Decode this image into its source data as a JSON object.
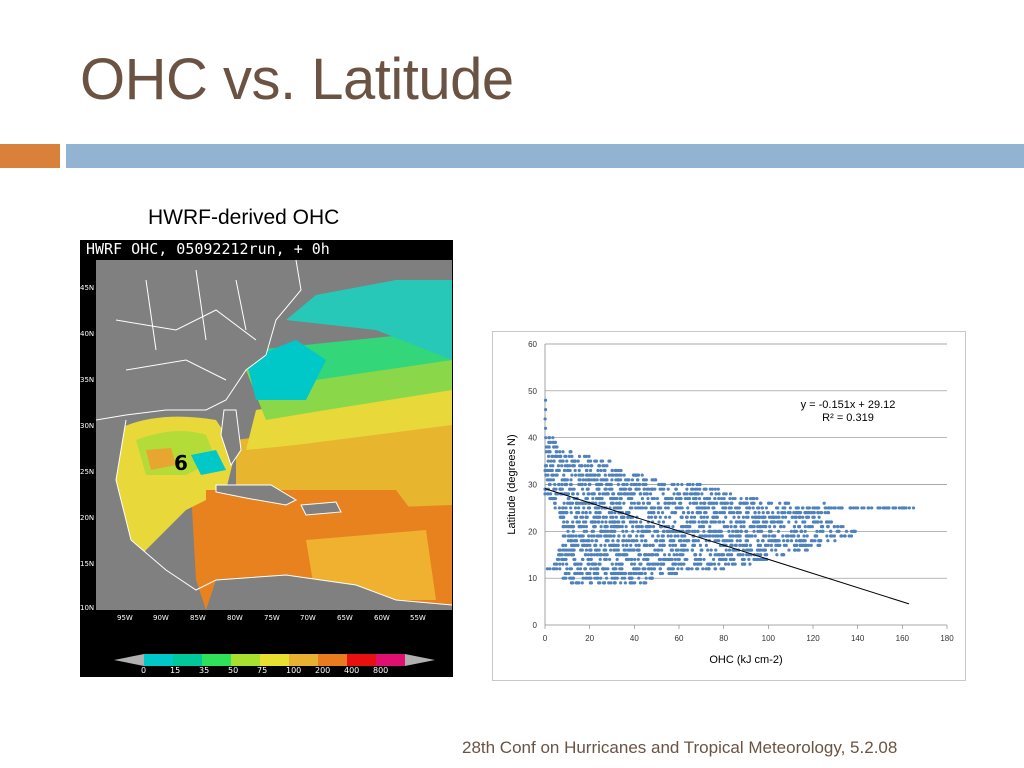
{
  "slide": {
    "title": "OHC vs. Latitude",
    "map_caption": "HWRF-derived OHC",
    "footer": "28th Conf on Hurricanes and Tropical Meteorology, 5.2.08"
  },
  "map": {
    "header": "HWRF OHC, 05092212run, + 0h",
    "storm_symbol": "੬",
    "lat_labels": [
      "45N",
      "40N",
      "35N",
      "30N",
      "25N",
      "20N",
      "15N",
      "10N"
    ],
    "lon_labels": [
      "95W",
      "90W",
      "85W",
      "80W",
      "75W",
      "70W",
      "65W",
      "60W",
      "55W"
    ],
    "colorbar_labels": [
      "0",
      "15",
      "35",
      "50",
      "75",
      "100",
      "200",
      "400",
      "800"
    ],
    "colorbar_colors": [
      "#00c8c8",
      "#00c89a",
      "#2ee05a",
      "#a8e030",
      "#e8e030",
      "#e8b030",
      "#e87a20",
      "#e81010",
      "#e01070"
    ]
  },
  "chart_data": {
    "type": "scatter",
    "xlabel": "OHC (kJ cm-2)",
    "ylabel": "Latitude (degrees N)",
    "xlim": [
      0,
      180
    ],
    "ylim": [
      0,
      60
    ],
    "xticks": [
      0,
      20,
      40,
      60,
      80,
      100,
      120,
      140,
      160,
      180
    ],
    "yticks": [
      0,
      10,
      20,
      30,
      40,
      50,
      60
    ],
    "grid": true,
    "point_color": "#4f81bd",
    "trendline": {
      "slope": -0.151,
      "intercept": 29.12,
      "x_range": [
        0,
        163
      ]
    },
    "annotation": [
      "y = -0.151x + 29.12",
      "R² = 0.319"
    ],
    "points_note_bands": [
      {
        "y": 48,
        "xmin": 0,
        "xmax": 0.5
      },
      {
        "y": 46,
        "xmin": 0,
        "xmax": 0.5
      },
      {
        "y": 44,
        "xmin": 0,
        "xmax": 0.5
      },
      {
        "y": 42,
        "xmin": 0,
        "xmax": 1
      },
      {
        "y": 40,
        "xmin": 0,
        "xmax": 4
      },
      {
        "y": 39,
        "xmin": 0,
        "xmax": 6
      },
      {
        "y": 38,
        "xmin": 0,
        "xmax": 8
      },
      {
        "y": 37,
        "xmin": 0,
        "xmax": 12
      },
      {
        "y": 36,
        "xmin": 0,
        "xmax": 20
      },
      {
        "y": 35,
        "xmin": 0,
        "xmax": 30
      },
      {
        "y": 34,
        "xmin": 0,
        "xmax": 28
      },
      {
        "y": 33,
        "xmin": 0,
        "xmax": 38
      },
      {
        "y": 32,
        "xmin": 0,
        "xmax": 45
      },
      {
        "y": 31,
        "xmin": 0,
        "xmax": 50
      },
      {
        "y": 30,
        "xmin": 0,
        "xmax": 72
      },
      {
        "y": 29,
        "xmin": 0,
        "xmax": 78
      },
      {
        "y": 28,
        "xmin": 0,
        "xmax": 86
      },
      {
        "y": 27,
        "xmin": 2,
        "xmax": 95
      },
      {
        "y": 26,
        "xmin": 4,
        "xmax": 110
      },
      {
        "y": 25,
        "xmin": 4,
        "xmax": 165
      },
      {
        "y": 24,
        "xmin": 6,
        "xmax": 128
      },
      {
        "y": 23,
        "xmin": 6,
        "xmax": 125
      },
      {
        "y": 22,
        "xmin": 8,
        "xmax": 130
      },
      {
        "y": 21,
        "xmin": 8,
        "xmax": 135
      },
      {
        "y": 20,
        "xmin": 10,
        "xmax": 140
      },
      {
        "y": 19,
        "xmin": 8,
        "xmax": 138
      },
      {
        "y": 18,
        "xmin": 8,
        "xmax": 130
      },
      {
        "y": 17,
        "xmin": 8,
        "xmax": 124
      },
      {
        "y": 16,
        "xmin": 6,
        "xmax": 118
      },
      {
        "y": 15,
        "xmin": 6,
        "xmax": 108
      },
      {
        "y": 14,
        "xmin": 4,
        "xmax": 100
      },
      {
        "y": 13,
        "xmin": 4,
        "xmax": 92
      },
      {
        "y": 12,
        "xmin": 0,
        "xmax": 80
      },
      {
        "y": 11,
        "xmin": 6,
        "xmax": 60
      },
      {
        "y": 10,
        "xmin": 8,
        "xmax": 50
      },
      {
        "y": 9,
        "xmin": 10,
        "xmax": 46
      }
    ]
  }
}
